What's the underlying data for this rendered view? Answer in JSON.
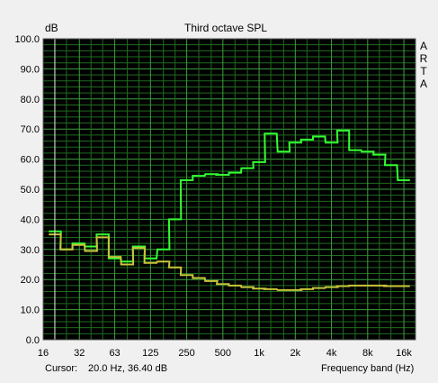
{
  "colors": {
    "plot_bg": "#000000",
    "minor_grid": "#1f6b1f",
    "major_grid": "#3fa03f",
    "border": "#5a5a5a",
    "series_green": "#33ff33",
    "series_yellow": "#c8c43c",
    "cursor": "#e8e8e8"
  },
  "app": {
    "vertical_label": [
      "A",
      "R",
      "T",
      "A"
    ]
  },
  "footer": {
    "cursor_label": "Cursor:",
    "cursor_value": "20.0 Hz, 36.40 dB",
    "axis_caption": "Frequency band (Hz)"
  },
  "chart_data": {
    "type": "line",
    "title": "Third octave SPL",
    "ylabel": "dB",
    "xlabel": "Frequency band (Hz)",
    "x_scale": "log",
    "xlim": [
      16,
      20000
    ],
    "ylim": [
      0,
      100
    ],
    "grid": true,
    "y_ticks": [
      "0.0",
      "10.0",
      "20.0",
      "30.0",
      "40.0",
      "50.0",
      "60.0",
      "70.0",
      "80.0",
      "90.0",
      "100.0"
    ],
    "x_ticks": [
      {
        "value": 16,
        "label": "16"
      },
      {
        "value": 32,
        "label": "32"
      },
      {
        "value": 63,
        "label": "63"
      },
      {
        "value": 125,
        "label": "125"
      },
      {
        "value": 250,
        "label": "250"
      },
      {
        "value": 500,
        "label": "500"
      },
      {
        "value": 1000,
        "label": "1k"
      },
      {
        "value": 2000,
        "label": "2k"
      },
      {
        "value": 4000,
        "label": "4k"
      },
      {
        "value": 8000,
        "label": "8k"
      },
      {
        "value": 16000,
        "label": "16k"
      }
    ],
    "cursor": {
      "x": 20,
      "y": 36.4
    },
    "bands": [
      20,
      25,
      31.5,
      40,
      50,
      63,
      80,
      100,
      125,
      160,
      200,
      250,
      315,
      400,
      500,
      630,
      800,
      1000,
      1250,
      1600,
      2000,
      2500,
      3150,
      4000,
      5000,
      6300,
      8000,
      10000,
      12500,
      16000
    ],
    "series": [
      {
        "color_key": "series_green",
        "values": [
          36,
          30,
          32,
          31,
          35,
          27,
          26,
          31,
          27,
          30,
          40,
          53,
          54.5,
          55,
          54.8,
          55.5,
          57,
          59,
          68.5,
          62.5,
          65.5,
          66.5,
          67.5,
          65.5,
          69.5,
          63,
          62.5,
          61.5,
          58,
          53
        ]
      },
      {
        "color_key": "series_yellow",
        "values": [
          35,
          30,
          31.5,
          29.5,
          34,
          27.5,
          25,
          30.5,
          25.5,
          26,
          24,
          21.5,
          20.5,
          19.5,
          18.5,
          18,
          17.5,
          17,
          16.8,
          16.5,
          16.5,
          16.8,
          17.2,
          17.5,
          17.8,
          18,
          18,
          18,
          17.8,
          17.8
        ]
      }
    ]
  }
}
